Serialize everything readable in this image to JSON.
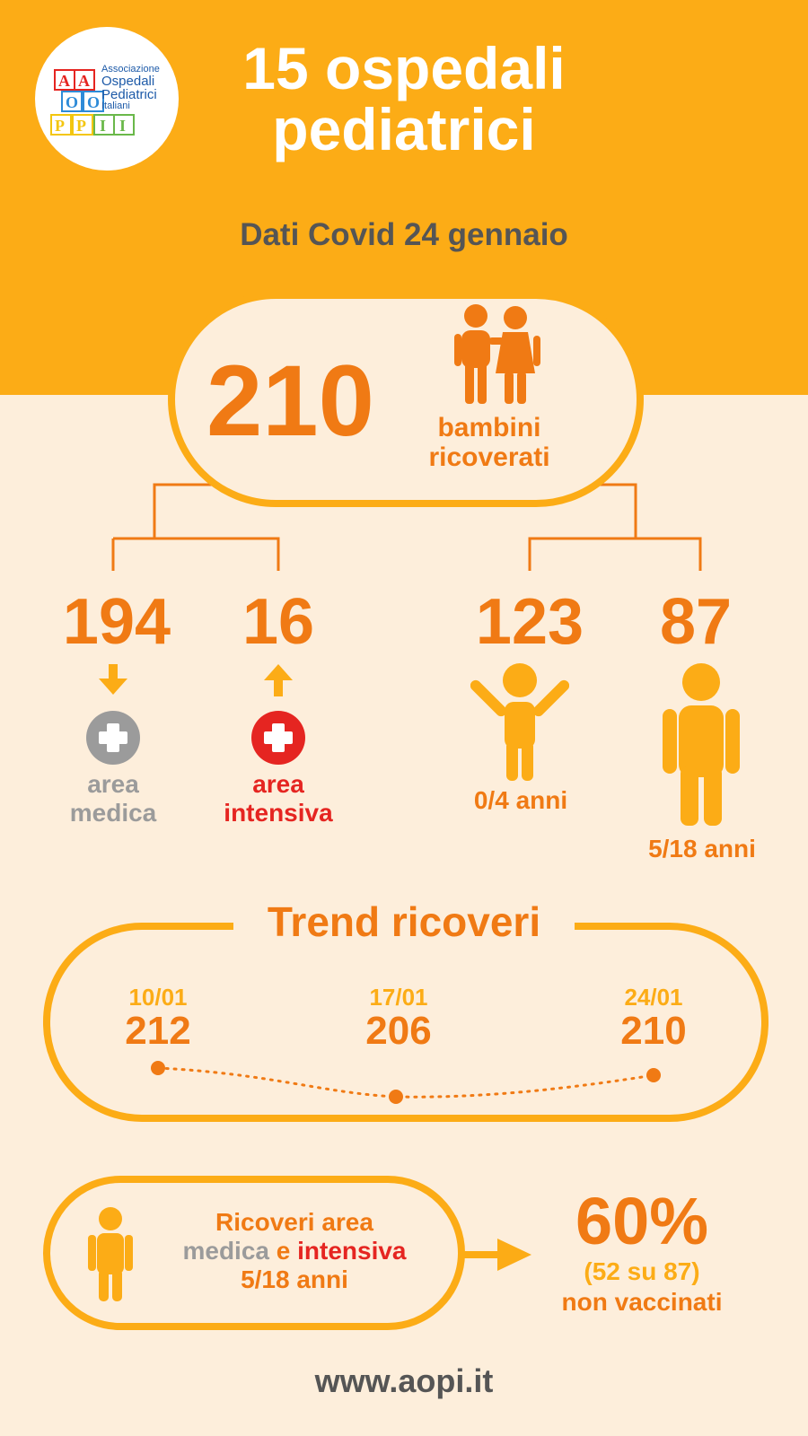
{
  "header": {
    "title_line1": "15 ospedali",
    "title_line2": "pediatrici",
    "subtitle": "Dati Covid 24 gennaio",
    "background_color": "#fcac16"
  },
  "logo": {
    "line1": "Associazione",
    "line2": "Ospedali",
    "line3": "Pediatrici",
    "line4": "Italiani",
    "blocks": [
      "A",
      "A",
      "O",
      "O",
      "P",
      "P",
      "I",
      "I"
    ]
  },
  "total": {
    "value": "210",
    "label_line1": "bambini",
    "label_line2": "ricoverati"
  },
  "breakdown": {
    "medica": {
      "value": "194",
      "label_line1": "area",
      "label_line2": "medica",
      "color": "#9b9b9b",
      "icon": "down-arrow-icon"
    },
    "intensiva": {
      "value": "16",
      "label_line1": "area",
      "label_line2": "intensiva",
      "color": "#e52521",
      "icon": "up-arrow-icon"
    },
    "age_0_4": {
      "value": "123",
      "label": "0/4 anni",
      "icon": "child-icon"
    },
    "age_5_18": {
      "value": "87",
      "label": "5/18 anni",
      "icon": "person-icon"
    }
  },
  "trend": {
    "title": "Trend ricoveri",
    "points": [
      {
        "date": "10/01",
        "value": "212"
      },
      {
        "date": "17/01",
        "value": "206"
      },
      {
        "date": "24/01",
        "value": "210"
      }
    ]
  },
  "vaccination": {
    "text_line1": "Ricoveri area",
    "text_line2_a": "medica",
    "text_line2_b": " e ",
    "text_line2_c": "intensiva",
    "text_line3": "5/18 anni",
    "percent": "60%",
    "detail": "(52 su 87)",
    "label": "non vaccinati"
  },
  "footer": {
    "url": "www.aopi.it"
  },
  "colors": {
    "orange": "#f07a14",
    "yellow": "#fcac16",
    "red": "#e52521",
    "gray": "#9b9b9b",
    "cream": "#fdeedb"
  }
}
